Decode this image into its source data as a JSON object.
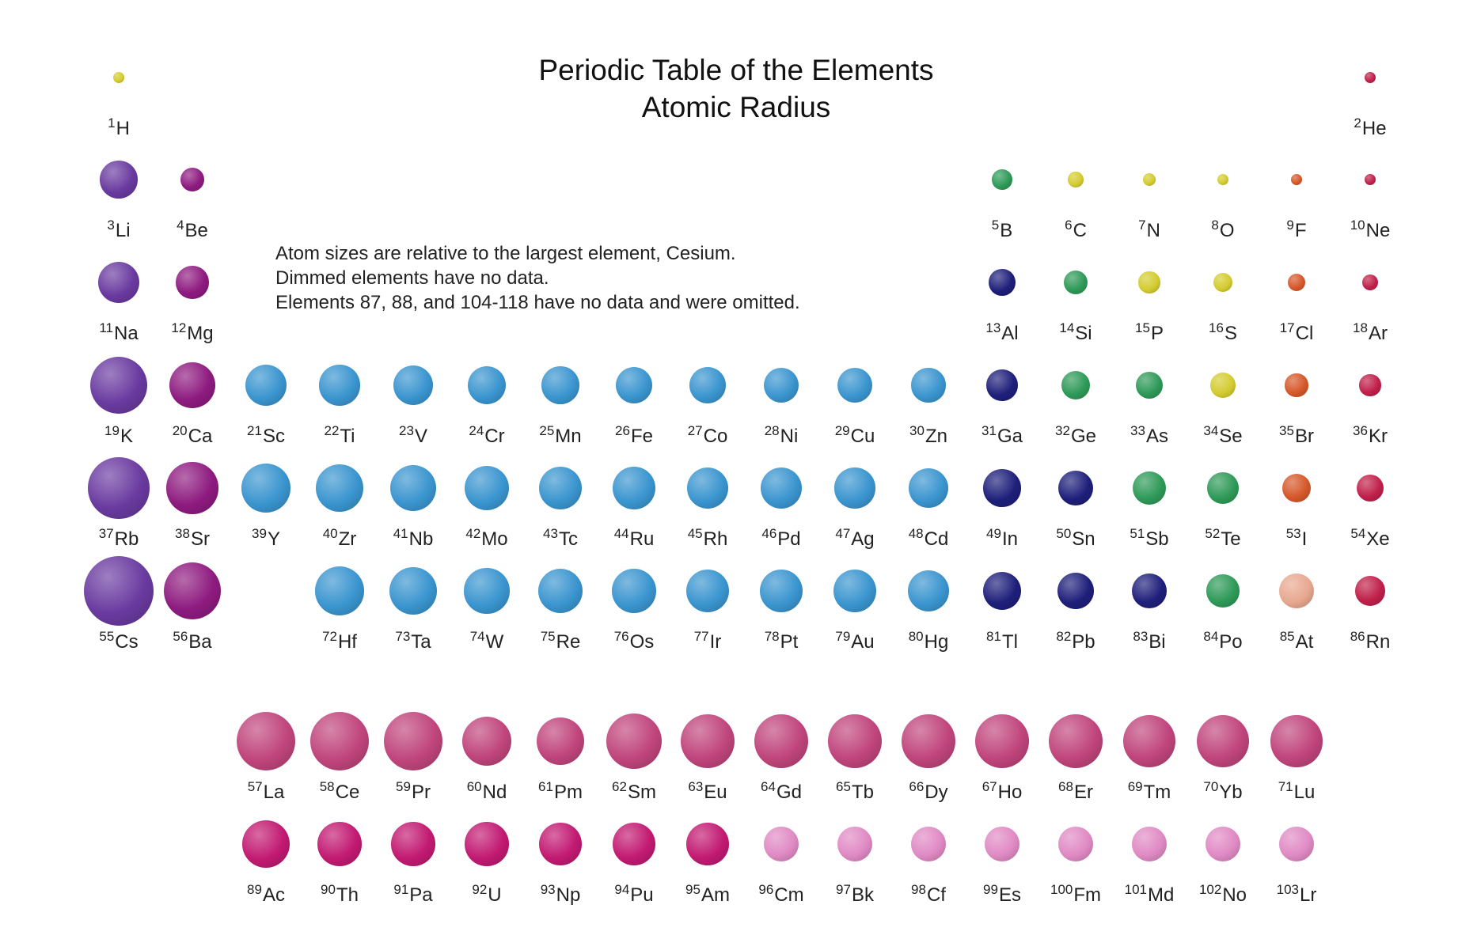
{
  "title": "Periodic Table of the Elements",
  "subtitle": "Atomic Radius",
  "notes": [
    "Atom sizes are relative to the largest element, Cesium.",
    "Dimmed elements have no data.",
    "Elements 87, 88, and 104-118 have no data and were omitted."
  ],
  "group_colors": {
    "alkali": "#6a3aa0",
    "alkaline": "#8e1b80",
    "transition": "#3a95cf",
    "lanthanide": "#c0457c",
    "actinide": "#c21a72",
    "actinide_dim": "#e08ac4",
    "poor_metal": "#1e1f7a",
    "metalloid": "#2e9a58",
    "nonmetal": "#d4cc30",
    "halogen": "#d6582a",
    "halogen_dim": "#e8a890",
    "noble": "#c0204a"
  },
  "elements": [
    {
      "z": 1,
      "symbol": "H",
      "radius": 0.09,
      "color": "nonmetal",
      "row": 0,
      "col": 0
    },
    {
      "z": 2,
      "symbol": "He",
      "radius": 0.05,
      "color": "noble",
      "row": 0,
      "col": 17
    },
    {
      "z": 3,
      "symbol": "Li",
      "radius": 0.54,
      "color": "alkali",
      "row": 1,
      "col": 0
    },
    {
      "z": 4,
      "symbol": "Be",
      "radius": 0.35,
      "color": "alkaline",
      "row": 1,
      "col": 1
    },
    {
      "z": 5,
      "symbol": "B",
      "radius": 0.29,
      "color": "metalloid",
      "row": 1,
      "col": 12
    },
    {
      "z": 6,
      "symbol": "C",
      "radius": 0.22,
      "color": "nonmetal",
      "row": 1,
      "col": 13
    },
    {
      "z": 7,
      "symbol": "N",
      "radius": 0.18,
      "color": "nonmetal",
      "row": 1,
      "col": 14
    },
    {
      "z": 8,
      "symbol": "O",
      "radius": 0.16,
      "color": "nonmetal",
      "row": 1,
      "col": 15
    },
    {
      "z": 9,
      "symbol": "F",
      "radius": 0.14,
      "color": "halogen",
      "row": 1,
      "col": 16
    },
    {
      "z": 10,
      "symbol": "Ne",
      "radius": 0.12,
      "color": "noble",
      "row": 1,
      "col": 17
    },
    {
      "z": 11,
      "symbol": "Na",
      "radius": 0.6,
      "color": "alkali",
      "row": 2,
      "col": 0
    },
    {
      "z": 12,
      "symbol": "Mg",
      "radius": 0.47,
      "color": "alkaline",
      "row": 2,
      "col": 1
    },
    {
      "z": 13,
      "symbol": "Al",
      "radius": 0.38,
      "color": "poor_metal",
      "row": 2,
      "col": 12
    },
    {
      "z": 14,
      "symbol": "Si",
      "radius": 0.34,
      "color": "metalloid",
      "row": 2,
      "col": 13
    },
    {
      "z": 15,
      "symbol": "P",
      "radius": 0.31,
      "color": "nonmetal",
      "row": 2,
      "col": 14
    },
    {
      "z": 16,
      "symbol": "S",
      "radius": 0.28,
      "color": "nonmetal",
      "row": 2,
      "col": 15
    },
    {
      "z": 17,
      "symbol": "Cl",
      "radius": 0.25,
      "color": "halogen",
      "row": 2,
      "col": 16
    },
    {
      "z": 18,
      "symbol": "Ar",
      "radius": 0.23,
      "color": "noble",
      "row": 2,
      "col": 17
    },
    {
      "z": 19,
      "symbol": "K",
      "radius": 0.82,
      "color": "alkali",
      "row": 3,
      "col": 0
    },
    {
      "z": 20,
      "symbol": "Ca",
      "radius": 0.66,
      "color": "alkaline",
      "row": 3,
      "col": 1
    },
    {
      "z": 21,
      "symbol": "Sc",
      "radius": 0.6,
      "color": "transition",
      "row": 3,
      "col": 2
    },
    {
      "z": 22,
      "symbol": "Ti",
      "radius": 0.58,
      "color": "transition",
      "row": 3,
      "col": 3
    },
    {
      "z": 23,
      "symbol": "V",
      "radius": 0.57,
      "color": "transition",
      "row": 3,
      "col": 4
    },
    {
      "z": 24,
      "symbol": "Cr",
      "radius": 0.55,
      "color": "transition",
      "row": 3,
      "col": 5
    },
    {
      "z": 25,
      "symbol": "Mn",
      "radius": 0.54,
      "color": "transition",
      "row": 3,
      "col": 6
    },
    {
      "z": 26,
      "symbol": "Fe",
      "radius": 0.53,
      "color": "transition",
      "row": 3,
      "col": 7
    },
    {
      "z": 27,
      "symbol": "Co",
      "radius": 0.52,
      "color": "transition",
      "row": 3,
      "col": 8
    },
    {
      "z": 28,
      "symbol": "Ni",
      "radius": 0.51,
      "color": "transition",
      "row": 3,
      "col": 9
    },
    {
      "z": 29,
      "symbol": "Cu",
      "radius": 0.5,
      "color": "transition",
      "row": 3,
      "col": 10
    },
    {
      "z": 30,
      "symbol": "Zn",
      "radius": 0.49,
      "color": "transition",
      "row": 3,
      "col": 11
    },
    {
      "z": 31,
      "symbol": "Ga",
      "radius": 0.45,
      "color": "poor_metal",
      "row": 3,
      "col": 12
    },
    {
      "z": 32,
      "symbol": "Ge",
      "radius": 0.42,
      "color": "metalloid",
      "row": 3,
      "col": 13
    },
    {
      "z": 33,
      "symbol": "As",
      "radius": 0.39,
      "color": "metalloid",
      "row": 3,
      "col": 14
    },
    {
      "z": 34,
      "symbol": "Se",
      "radius": 0.36,
      "color": "nonmetal",
      "row": 3,
      "col": 15
    },
    {
      "z": 35,
      "symbol": "Br",
      "radius": 0.33,
      "color": "halogen",
      "row": 3,
      "col": 16
    },
    {
      "z": 36,
      "symbol": "Kr",
      "radius": 0.31,
      "color": "noble",
      "row": 3,
      "col": 17
    },
    {
      "z": 37,
      "symbol": "Rb",
      "radius": 0.88,
      "color": "alkali",
      "row": 4,
      "col": 0
    },
    {
      "z": 38,
      "symbol": "Sr",
      "radius": 0.74,
      "color": "alkaline",
      "row": 4,
      "col": 1
    },
    {
      "z": 39,
      "symbol": "Y",
      "radius": 0.7,
      "color": "transition",
      "row": 4,
      "col": 2
    },
    {
      "z": 40,
      "symbol": "Zr",
      "radius": 0.68,
      "color": "transition",
      "row": 4,
      "col": 3
    },
    {
      "z": 41,
      "symbol": "Nb",
      "radius": 0.66,
      "color": "transition",
      "row": 4,
      "col": 4
    },
    {
      "z": 42,
      "symbol": "Mo",
      "radius": 0.64,
      "color": "transition",
      "row": 4,
      "col": 5
    },
    {
      "z": 43,
      "symbol": "Tc",
      "radius": 0.62,
      "color": "transition",
      "row": 4,
      "col": 6
    },
    {
      "z": 44,
      "symbol": "Ru",
      "radius": 0.61,
      "color": "transition",
      "row": 4,
      "col": 7
    },
    {
      "z": 45,
      "symbol": "Rh",
      "radius": 0.6,
      "color": "transition",
      "row": 4,
      "col": 8
    },
    {
      "z": 46,
      "symbol": "Pd",
      "radius": 0.59,
      "color": "transition",
      "row": 4,
      "col": 9
    },
    {
      "z": 47,
      "symbol": "Ag",
      "radius": 0.58,
      "color": "transition",
      "row": 4,
      "col": 10
    },
    {
      "z": 48,
      "symbol": "Cd",
      "radius": 0.57,
      "color": "transition",
      "row": 4,
      "col": 11
    },
    {
      "z": 49,
      "symbol": "In",
      "radius": 0.54,
      "color": "poor_metal",
      "row": 4,
      "col": 12
    },
    {
      "z": 50,
      "symbol": "Sn",
      "radius": 0.51,
      "color": "poor_metal",
      "row": 4,
      "col": 13
    },
    {
      "z": 51,
      "symbol": "Sb",
      "radius": 0.48,
      "color": "metalloid",
      "row": 4,
      "col": 14
    },
    {
      "z": 52,
      "symbol": "Te",
      "radius": 0.45,
      "color": "metalloid",
      "row": 4,
      "col": 15
    },
    {
      "z": 53,
      "symbol": "I",
      "radius": 0.42,
      "color": "halogen",
      "row": 4,
      "col": 16
    },
    {
      "z": 54,
      "symbol": "Xe",
      "radius": 0.39,
      "color": "noble",
      "row": 4,
      "col": 17
    },
    {
      "z": 55,
      "symbol": "Cs",
      "radius": 1.0,
      "color": "alkali",
      "row": 5,
      "col": 0
    },
    {
      "z": 56,
      "symbol": "Ba",
      "radius": 0.82,
      "color": "alkaline",
      "row": 5,
      "col": 1
    },
    {
      "z": 72,
      "symbol": "Hf",
      "radius": 0.7,
      "color": "transition",
      "row": 5,
      "col": 3
    },
    {
      "z": 73,
      "symbol": "Ta",
      "radius": 0.68,
      "color": "transition",
      "row": 5,
      "col": 4
    },
    {
      "z": 74,
      "symbol": "W",
      "radius": 0.65,
      "color": "transition",
      "row": 5,
      "col": 5
    },
    {
      "z": 75,
      "symbol": "Re",
      "radius": 0.64,
      "color": "transition",
      "row": 5,
      "col": 6
    },
    {
      "z": 76,
      "symbol": "Os",
      "radius": 0.63,
      "color": "transition",
      "row": 5,
      "col": 7
    },
    {
      "z": 77,
      "symbol": "Ir",
      "radius": 0.62,
      "color": "transition",
      "row": 5,
      "col": 8
    },
    {
      "z": 78,
      "symbol": "Pt",
      "radius": 0.61,
      "color": "transition",
      "row": 5,
      "col": 9
    },
    {
      "z": 79,
      "symbol": "Au",
      "radius": 0.61,
      "color": "transition",
      "row": 5,
      "col": 10
    },
    {
      "z": 80,
      "symbol": "Hg",
      "radius": 0.6,
      "color": "transition",
      "row": 5,
      "col": 11
    },
    {
      "z": 81,
      "symbol": "Tl",
      "radius": 0.55,
      "color": "poor_metal",
      "row": 5,
      "col": 12
    },
    {
      "z": 82,
      "symbol": "Pb",
      "radius": 0.52,
      "color": "poor_metal",
      "row": 5,
      "col": 13
    },
    {
      "z": 83,
      "symbol": "Bi",
      "radius": 0.5,
      "color": "poor_metal",
      "row": 5,
      "col": 14
    },
    {
      "z": 84,
      "symbol": "Po",
      "radius": 0.47,
      "color": "metalloid",
      "row": 5,
      "col": 15
    },
    {
      "z": 85,
      "symbol": "At",
      "radius": 0.5,
      "color": "halogen_dim",
      "row": 5,
      "col": 16
    },
    {
      "z": 86,
      "symbol": "Rn",
      "radius": 0.43,
      "color": "noble",
      "row": 5,
      "col": 17
    },
    {
      "z": 57,
      "symbol": "La",
      "radius": 0.84,
      "color": "lanthanide",
      "row": 6,
      "col": 2
    },
    {
      "z": 58,
      "symbol": "Ce",
      "radius": 0.84,
      "color": "lanthanide",
      "row": 6,
      "col": 3
    },
    {
      "z": 59,
      "symbol": "Pr",
      "radius": 0.84,
      "color": "lanthanide",
      "row": 6,
      "col": 4
    },
    {
      "z": 60,
      "symbol": "Nd",
      "radius": 0.71,
      "color": "lanthanide",
      "row": 6,
      "col": 5
    },
    {
      "z": 61,
      "symbol": "Pm",
      "radius": 0.69,
      "color": "lanthanide",
      "row": 6,
      "col": 6
    },
    {
      "z": 62,
      "symbol": "Sm",
      "radius": 0.8,
      "color": "lanthanide",
      "row": 6,
      "col": 7
    },
    {
      "z": 63,
      "symbol": "Eu",
      "radius": 0.78,
      "color": "lanthanide",
      "row": 6,
      "col": 8
    },
    {
      "z": 64,
      "symbol": "Gd",
      "radius": 0.78,
      "color": "lanthanide",
      "row": 6,
      "col": 9
    },
    {
      "z": 65,
      "symbol": "Tb",
      "radius": 0.77,
      "color": "lanthanide",
      "row": 6,
      "col": 10
    },
    {
      "z": 66,
      "symbol": "Dy",
      "radius": 0.77,
      "color": "lanthanide",
      "row": 6,
      "col": 11
    },
    {
      "z": 67,
      "symbol": "Ho",
      "radius": 0.77,
      "color": "lanthanide",
      "row": 6,
      "col": 12
    },
    {
      "z": 68,
      "symbol": "Er",
      "radius": 0.77,
      "color": "lanthanide",
      "row": 6,
      "col": 13
    },
    {
      "z": 69,
      "symbol": "Tm",
      "radius": 0.76,
      "color": "lanthanide",
      "row": 6,
      "col": 14
    },
    {
      "z": 70,
      "symbol": "Yb",
      "radius": 0.76,
      "color": "lanthanide",
      "row": 6,
      "col": 15
    },
    {
      "z": 71,
      "symbol": "Lu",
      "radius": 0.74,
      "color": "lanthanide",
      "row": 6,
      "col": 16
    },
    {
      "z": 89,
      "symbol": "Ac",
      "radius": 0.68,
      "color": "actinide",
      "row": 7,
      "col": 2
    },
    {
      "z": 90,
      "symbol": "Th",
      "radius": 0.63,
      "color": "actinide",
      "row": 7,
      "col": 3
    },
    {
      "z": 91,
      "symbol": "Pa",
      "radius": 0.63,
      "color": "actinide",
      "row": 7,
      "col": 4
    },
    {
      "z": 92,
      "symbol": "U",
      "radius": 0.63,
      "color": "actinide",
      "row": 7,
      "col": 5
    },
    {
      "z": 93,
      "symbol": "Np",
      "radius": 0.61,
      "color": "actinide",
      "row": 7,
      "col": 6
    },
    {
      "z": 94,
      "symbol": "Pu",
      "radius": 0.61,
      "color": "actinide",
      "row": 7,
      "col": 7
    },
    {
      "z": 95,
      "symbol": "Am",
      "radius": 0.61,
      "color": "actinide",
      "row": 7,
      "col": 8
    },
    {
      "z": 96,
      "symbol": "Cm",
      "radius": 0.5,
      "color": "actinide_dim",
      "row": 7,
      "col": 9
    },
    {
      "z": 97,
      "symbol": "Bk",
      "radius": 0.5,
      "color": "actinide_dim",
      "row": 7,
      "col": 10
    },
    {
      "z": 98,
      "symbol": "Cf",
      "radius": 0.5,
      "color": "actinide_dim",
      "row": 7,
      "col": 11
    },
    {
      "z": 99,
      "symbol": "Es",
      "radius": 0.5,
      "color": "actinide_dim",
      "row": 7,
      "col": 12
    },
    {
      "z": 100,
      "symbol": "Fm",
      "radius": 0.5,
      "color": "actinide_dim",
      "row": 7,
      "col": 13
    },
    {
      "z": 101,
      "symbol": "Md",
      "radius": 0.5,
      "color": "actinide_dim",
      "row": 7,
      "col": 14
    },
    {
      "z": 102,
      "symbol": "No",
      "radius": 0.5,
      "color": "actinide_dim",
      "row": 7,
      "col": 15
    },
    {
      "z": 103,
      "symbol": "Lr",
      "radius": 0.5,
      "color": "actinide_dim",
      "row": 7,
      "col": 16
    }
  ]
}
